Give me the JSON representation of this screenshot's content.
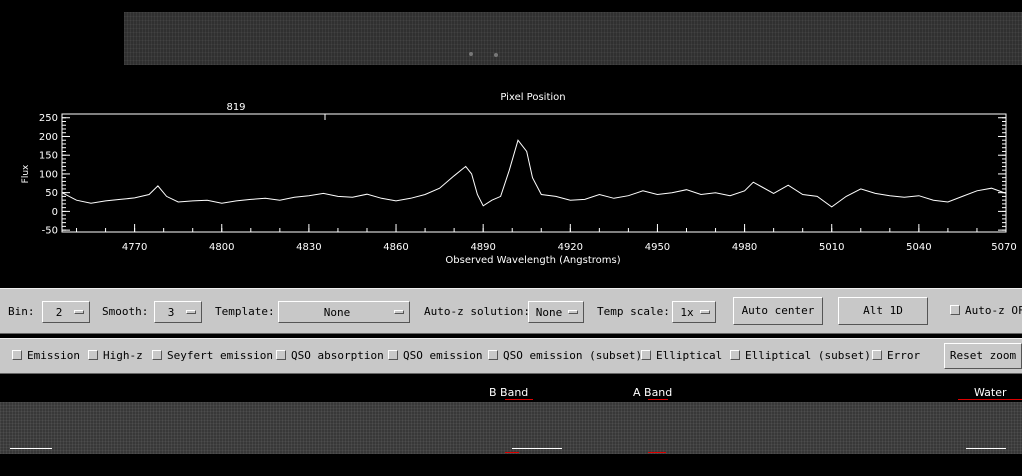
{
  "spectrum_2d_top": {
    "name": "2D spectrum (top)"
  },
  "plot": {
    "top_title": "Pixel Position",
    "top_tick": "819",
    "xlabel": "Observed Wavelength (Angstroms)",
    "ylabel": "Flux"
  },
  "chart_data": {
    "type": "line",
    "title": "Pixel Position",
    "xlabel": "Observed Wavelength (Angstroms)",
    "ylabel": "Flux",
    "xlim": [
      4745,
      5070
    ],
    "ylim": [
      -55,
      260
    ],
    "xticks": [
      "4770",
      "4800",
      "4830",
      "4860",
      "4890",
      "4920",
      "4950",
      "4980",
      "5010",
      "5040",
      "5070"
    ],
    "yticks": [
      "250",
      "200",
      "150",
      "100",
      "50",
      "0",
      "-50"
    ],
    "x": [
      4745,
      4750,
      4755,
      4760,
      4765,
      4770,
      4775,
      4778,
      4781,
      4785,
      4790,
      4795,
      4800,
      4805,
      4810,
      4815,
      4820,
      4825,
      4830,
      4835,
      4840,
      4845,
      4850,
      4855,
      4860,
      4865,
      4870,
      4875,
      4880,
      4884,
      4886,
      4888,
      4890,
      4893,
      4896,
      4899,
      4902,
      4905,
      4907,
      4910,
      4915,
      4920,
      4925,
      4930,
      4935,
      4940,
      4945,
      4950,
      4955,
      4960,
      4965,
      4970,
      4975,
      4980,
      4983,
      4986,
      4990,
      4995,
      5000,
      5005,
      5010,
      5015,
      5020,
      5025,
      5030,
      5035,
      5040,
      5045,
      5050,
      5055,
      5060,
      5065,
      5070
    ],
    "y": [
      50,
      30,
      22,
      28,
      32,
      36,
      45,
      68,
      40,
      25,
      28,
      30,
      22,
      28,
      32,
      35,
      30,
      38,
      42,
      48,
      40,
      38,
      46,
      35,
      28,
      35,
      45,
      62,
      95,
      120,
      100,
      45,
      15,
      30,
      40,
      110,
      190,
      160,
      90,
      45,
      40,
      30,
      32,
      45,
      35,
      42,
      55,
      45,
      50,
      58,
      45,
      50,
      42,
      55,
      78,
      65,
      48,
      70,
      45,
      40,
      12,
      40,
      60,
      48,
      42,
      38,
      42,
      30,
      25,
      40,
      55,
      62,
      48
    ]
  },
  "controls": {
    "bin_label": "Bin:",
    "bin_value": "2",
    "smooth_label": "Smooth:",
    "smooth_value": "3",
    "template_label": "Template:",
    "template_value": "None",
    "autoz_label": "Auto-z solution:",
    "autoz_value": "None",
    "tempscale_label": "Temp scale:",
    "tempscale_value": "1x",
    "auto_center": "Auto center",
    "alt_1d": "Alt 1D",
    "autoz_off": "Auto-z OFF"
  },
  "templates": {
    "emission": "Emission",
    "highz": "High-z",
    "seyfert": "Seyfert emission",
    "qso_abs": "QSO absorption",
    "qso_em": "QSO emission",
    "qso_em_sub": "QSO emission (subset)",
    "elliptical": "Elliptical",
    "elliptical_sub": "Elliptical (subset)",
    "error": "Error",
    "reset_zoom": "Reset zoom"
  },
  "bands": {
    "b_band": "B Band",
    "a_band": "A Band",
    "water": "Water"
  },
  "colors": {
    "panel": "#c8c8c8",
    "band_marker": "#dd0000"
  }
}
